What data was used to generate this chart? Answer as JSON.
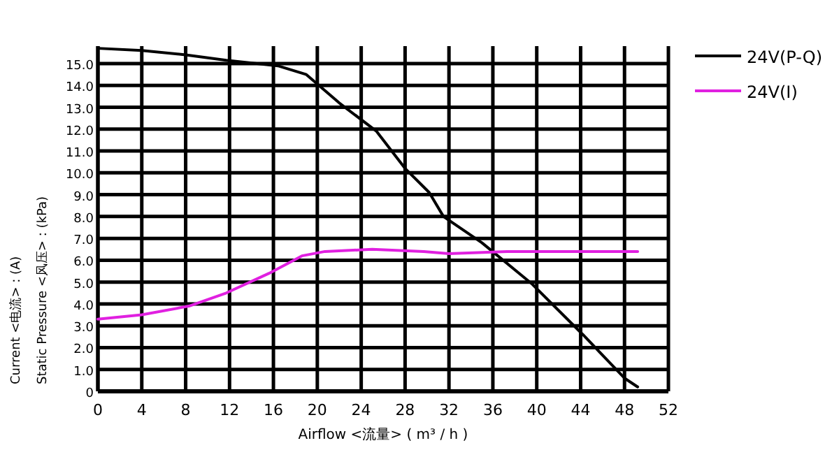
{
  "chart_data": {
    "type": "line",
    "xlabel": "Airflow <流量> ( m³ / h )",
    "ylabel": "Static Pressure <风压> : (kPa)",
    "annotations": [
      "Current <电流> : (A)"
    ],
    "xlim": [
      0,
      52
    ],
    "xticks": [
      0,
      4,
      8,
      12,
      16,
      20,
      24,
      28,
      32,
      36,
      40,
      44,
      48,
      52
    ],
    "ylim": [
      0,
      15.8
    ],
    "yticks": [
      0,
      {
        "value": 1,
        "label": "1.0"
      },
      {
        "value": 2,
        "label": "2.0"
      },
      {
        "value": 3,
        "label": "3.0"
      },
      {
        "value": 4,
        "label": "4.0"
      },
      {
        "value": 5,
        "label": "5.0"
      },
      {
        "value": 6,
        "label": "6.0"
      },
      {
        "value": 7,
        "label": "7.0"
      },
      {
        "value": 8,
        "label": "8.0"
      },
      {
        "value": 9,
        "label": "9.0"
      },
      {
        "value": 10,
        "label": "10.0"
      },
      {
        "value": 11,
        "label": "11.0"
      },
      {
        "value": 12,
        "label": "12.0"
      },
      {
        "value": 13,
        "label": "13.0"
      },
      {
        "value": 14,
        "label": "14.0"
      },
      {
        "value": 15,
        "label": "15.0"
      }
    ],
    "grid": true,
    "legend": "top right",
    "marker": "none",
    "line_style": "solid",
    "series": [
      {
        "name": "24V(P-Q)",
        "color": "#000000",
        "x": [
          0,
          4,
          8,
          11.7,
          16.4,
          19,
          22,
          25.4,
          28,
          30.2,
          31.5,
          35,
          39.6,
          44.2,
          48,
          49.2
        ],
        "values": [
          15.7,
          15.6,
          15.4,
          15.15,
          14.9,
          14.5,
          13.2,
          11.9,
          10.2,
          9.1,
          8.0,
          6.8,
          4.9,
          2.6,
          0.6,
          0.2
        ]
      },
      {
        "name": "24V(Ⅰ)",
        "color": "#e020e0",
        "x": [
          0,
          4,
          8.3,
          11.7,
          15.6,
          18.6,
          20.7,
          25,
          29.7,
          32,
          37.3,
          49.2
        ],
        "values": [
          3.3,
          3.5,
          3.9,
          4.5,
          5.4,
          6.2,
          6.4,
          6.5,
          6.4,
          6.3,
          6.4,
          6.4
        ]
      }
    ]
  }
}
